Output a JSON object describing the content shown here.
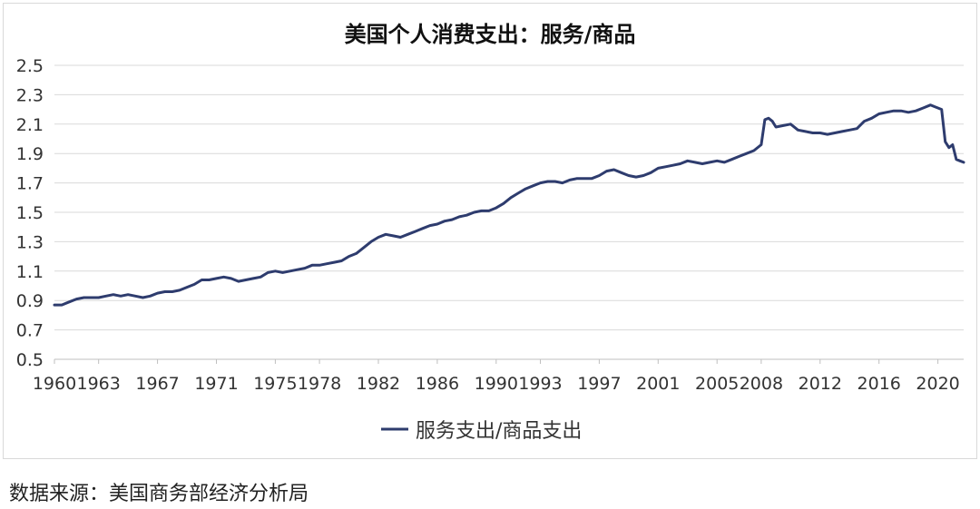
{
  "chart_data": {
    "type": "line",
    "title": "美国个人消费支出：服务/商品",
    "xlabel": "",
    "ylabel": "",
    "ylim": [
      0.5,
      2.5
    ],
    "yticks": [
      0.5,
      0.7,
      0.9,
      1.1,
      1.3,
      1.5,
      1.7,
      1.9,
      2.1,
      2.3,
      2.5
    ],
    "xlim": [
      1960,
      2021.75
    ],
    "xticks": [
      1960,
      1963,
      1967,
      1971,
      1975,
      1978,
      1982,
      1986,
      1990,
      1993,
      1997,
      2001,
      2005,
      2008,
      2012,
      2016,
      2020
    ],
    "grid": true,
    "legend_position": "bottom",
    "series": [
      {
        "name": "服务支出/商品支出",
        "color": "#2e3c6e",
        "x": [
          1960,
          1960.5,
          1961,
          1961.5,
          1962,
          1963,
          1963.5,
          1964,
          1964.5,
          1965,
          1965.5,
          1966,
          1966.5,
          1967,
          1967.5,
          1968,
          1968.5,
          1969,
          1969.5,
          1970,
          1970.5,
          1971,
          1971.5,
          1972,
          1972.5,
          1973,
          1973.5,
          1974,
          1974.5,
          1975,
          1975.5,
          1976,
          1976.5,
          1977,
          1977.5,
          1978,
          1978.5,
          1979,
          1979.5,
          1980,
          1980.5,
          1981,
          1981.5,
          1982,
          1982.5,
          1983,
          1983.5,
          1984,
          1984.5,
          1985,
          1985.5,
          1986,
          1986.5,
          1987,
          1987.5,
          1988,
          1988.5,
          1989,
          1989.5,
          1990,
          1990.5,
          1991,
          1991.5,
          1992,
          1992.5,
          1993,
          1993.5,
          1994,
          1994.5,
          1995,
          1995.5,
          1996,
          1996.5,
          1997,
          1997.5,
          1998,
          1998.5,
          1999,
          1999.5,
          2000,
          2000.5,
          2001,
          2001.5,
          2002,
          2002.5,
          2003,
          2003.5,
          2004,
          2004.5,
          2005,
          2005.5,
          2006,
          2006.5,
          2007,
          2007.5,
          2008,
          2008.25,
          2008.5,
          2008.75,
          2009,
          2009.5,
          2010,
          2010.5,
          2011,
          2011.5,
          2012,
          2012.5,
          2013,
          2013.5,
          2014,
          2014.5,
          2015,
          2015.5,
          2016,
          2016.5,
          2017,
          2017.5,
          2018,
          2018.5,
          2019,
          2019.5,
          2019.75,
          2020,
          2020.25,
          2020.5,
          2020.75,
          2021,
          2021.25,
          2021.5,
          2021.75
        ],
        "values": [
          0.87,
          0.87,
          0.89,
          0.91,
          0.92,
          0.92,
          0.93,
          0.94,
          0.93,
          0.94,
          0.93,
          0.92,
          0.93,
          0.95,
          0.96,
          0.96,
          0.97,
          0.99,
          1.01,
          1.04,
          1.04,
          1.05,
          1.06,
          1.05,
          1.03,
          1.04,
          1.05,
          1.06,
          1.09,
          1.1,
          1.09,
          1.1,
          1.11,
          1.12,
          1.14,
          1.14,
          1.15,
          1.16,
          1.17,
          1.2,
          1.22,
          1.26,
          1.3,
          1.33,
          1.35,
          1.34,
          1.33,
          1.35,
          1.37,
          1.39,
          1.41,
          1.42,
          1.44,
          1.45,
          1.47,
          1.48,
          1.5,
          1.51,
          1.51,
          1.53,
          1.56,
          1.6,
          1.63,
          1.66,
          1.68,
          1.7,
          1.71,
          1.71,
          1.7,
          1.72,
          1.73,
          1.73,
          1.73,
          1.75,
          1.78,
          1.79,
          1.77,
          1.75,
          1.74,
          1.75,
          1.77,
          1.8,
          1.81,
          1.82,
          1.83,
          1.85,
          1.84,
          1.83,
          1.84,
          1.85,
          1.84,
          1.86,
          1.88,
          1.9,
          1.92,
          1.96,
          2.13,
          2.14,
          2.12,
          2.08,
          2.09,
          2.1,
          2.06,
          2.05,
          2.04,
          2.04,
          2.03,
          2.04,
          2.05,
          2.06,
          2.07,
          2.12,
          2.14,
          2.17,
          2.18,
          2.19,
          2.19,
          2.18,
          2.19,
          2.21,
          2.23,
          2.22,
          2.21,
          2.2,
          1.98,
          1.94,
          1.96,
          1.86,
          1.85,
          1.84
        ]
      }
    ]
  },
  "source_note": "数据来源：美国商务部经济分析局"
}
